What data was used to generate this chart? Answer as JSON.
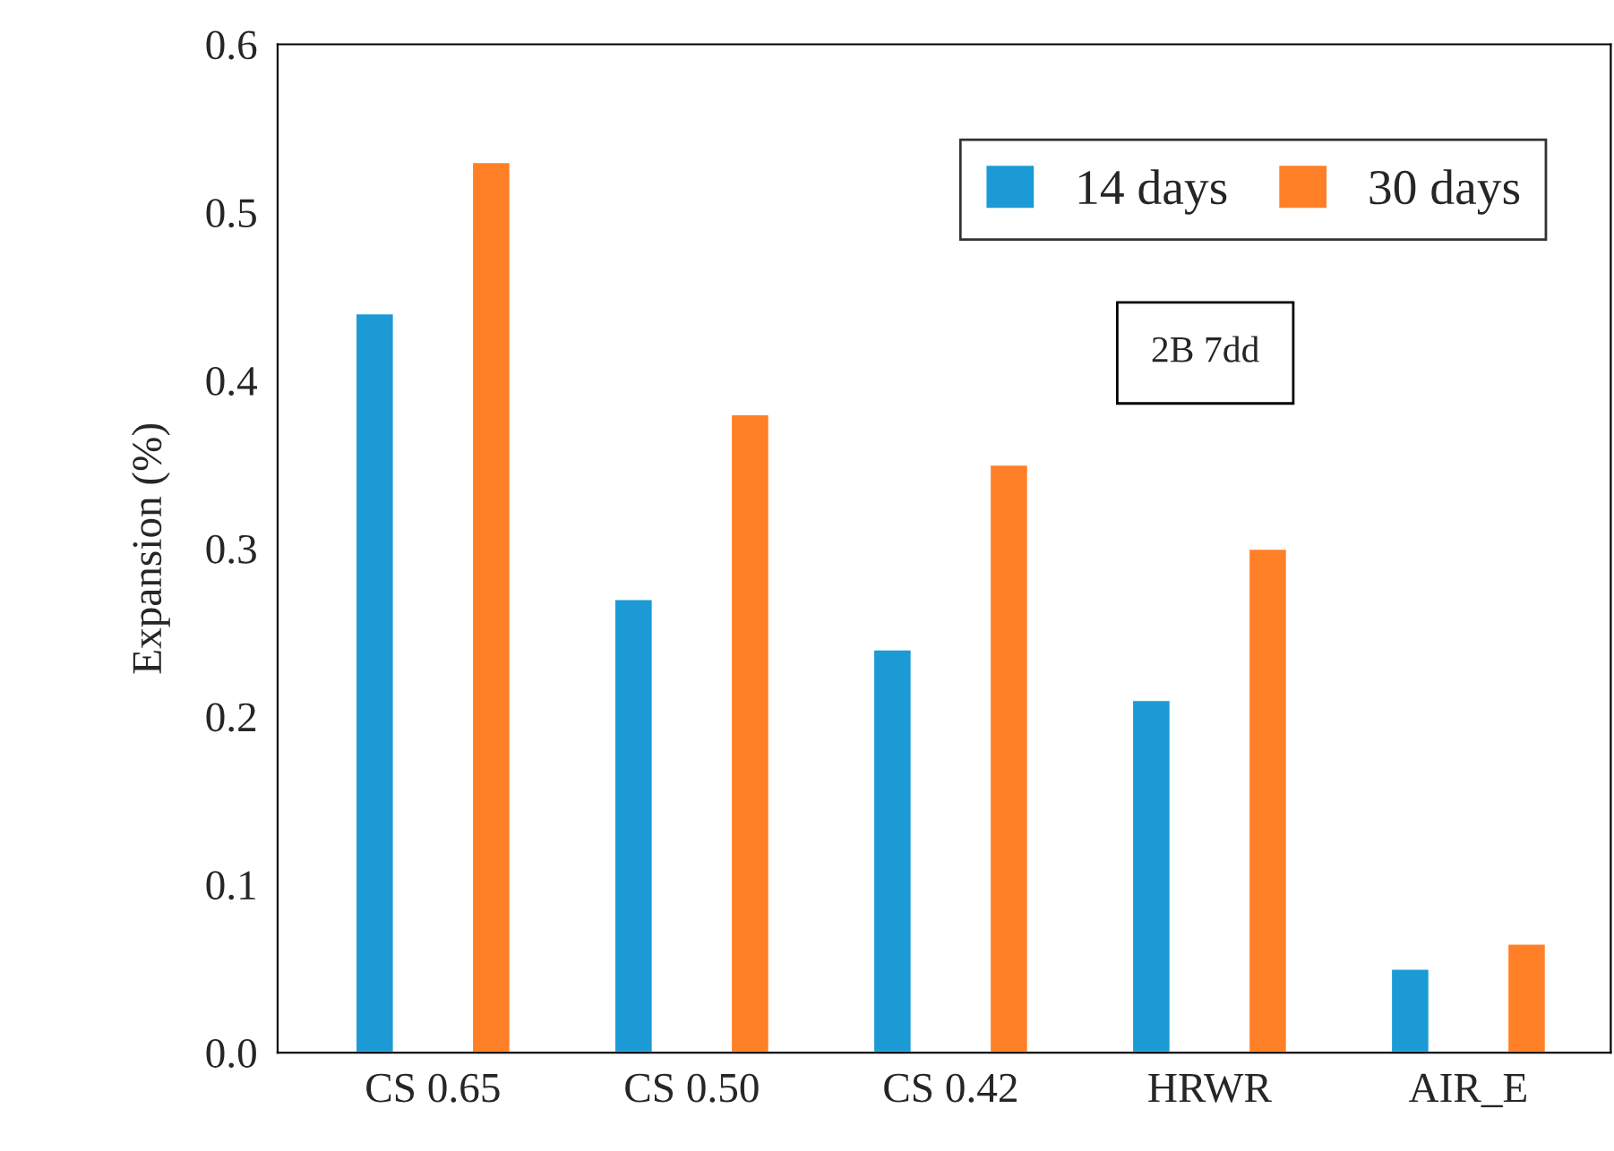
{
  "chart_data": {
    "type": "bar",
    "ylabel": "Expansion (%)",
    "categories": [
      "CS 0.65",
      "CS 0.50",
      "CS 0.42",
      "HRWR",
      "AIR_E"
    ],
    "series": [
      {
        "name": "14 days",
        "color": "#1b9ad6",
        "values": [
          0.44,
          0.27,
          0.24,
          0.21,
          0.05
        ]
      },
      {
        "name": "30 days",
        "color": "#ff7f27",
        "values": [
          0.53,
          0.38,
          0.35,
          0.3,
          0.065
        ]
      }
    ],
    "ylim": [
      0,
      0.6
    ],
    "yticks": [
      {
        "value": 0,
        "label": "0.0"
      },
      0.1,
      0.2,
      0.3,
      0.4,
      0.5,
      0.6
    ],
    "annotations": [
      "2B 7dd"
    ],
    "legend": "top right",
    "grid": false
  }
}
